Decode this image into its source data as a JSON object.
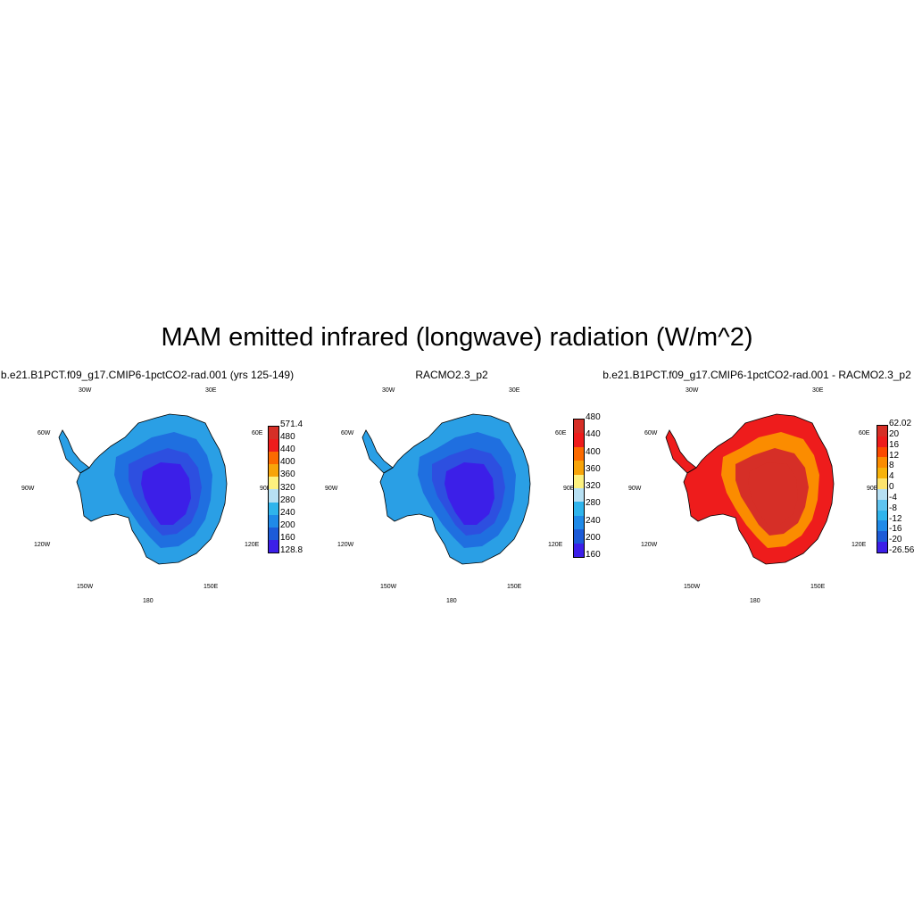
{
  "title": "MAM emitted infrared (longwave) radiation (W/m^2)",
  "lon_labels": [
    "30W",
    "30E",
    "60W",
    "60E",
    "90W",
    "90E",
    "120W",
    "120E",
    "150W",
    "150E",
    "180"
  ],
  "panels": [
    {
      "title": "b.e21.B1PCT.f09_g17.CMIP6-1pctCO2-rad.001 (yrs 125-149)",
      "colorbar": {
        "labels": [
          "571.4",
          "480",
          "440",
          "400",
          "360",
          "320",
          "280",
          "240",
          "200",
          "160",
          "128.8"
        ],
        "colors": [
          "#d62f27",
          "#ee1c1c",
          "#fb6a00",
          "#f7a40a",
          "#fdf17f",
          "#b7e0f3",
          "#2fb4ec",
          "#1f8ae8",
          "#1c5bd8",
          "#3c1fe8"
        ]
      },
      "fill": {
        "coast": "#2a9fe5",
        "mid": "#1f6fe0",
        "inner": "#2d4fe0",
        "core": "#3c1fe8"
      }
    },
    {
      "title": "RACMO2.3_p2",
      "colorbar": {
        "labels": [
          "480",
          "440",
          "400",
          "360",
          "320",
          "280",
          "240",
          "200",
          "160"
        ],
        "colors": [
          "#d62f27",
          "#ee1c1c",
          "#fb6a00",
          "#f7a40a",
          "#fdf17f",
          "#b7e0f3",
          "#2fb4ec",
          "#1f8ae8",
          "#1c5bd8",
          "#3c1fe8"
        ]
      },
      "fill": {
        "coast": "#2a9fe5",
        "mid": "#1f6fe0",
        "inner": "#2d4fe0",
        "core": "#3c1fe8"
      }
    },
    {
      "title": "b.e21.B1PCT.f09_g17.CMIP6-1pctCO2-rad.001 - RACMO2.3_p2",
      "colorbar": {
        "labels": [
          "62.02",
          "20",
          "16",
          "12",
          "8",
          "4",
          "0",
          "-4",
          "-8",
          "-12",
          "-16",
          "-20",
          "-26.56"
        ],
        "colors": [
          "#d62f27",
          "#ee1c1c",
          "#fb4a00",
          "#fb8c00",
          "#f7b20a",
          "#fde46e",
          "#b7e0f3",
          "#5fc4f0",
          "#2fb4ec",
          "#1f8ae8",
          "#1c5bd8",
          "#3c1fe8"
        ]
      },
      "fill": {
        "coast": "#ee1c1c",
        "mid": "#fb8c00",
        "inner": "#d62f27",
        "core": "#d62f27"
      }
    }
  ]
}
